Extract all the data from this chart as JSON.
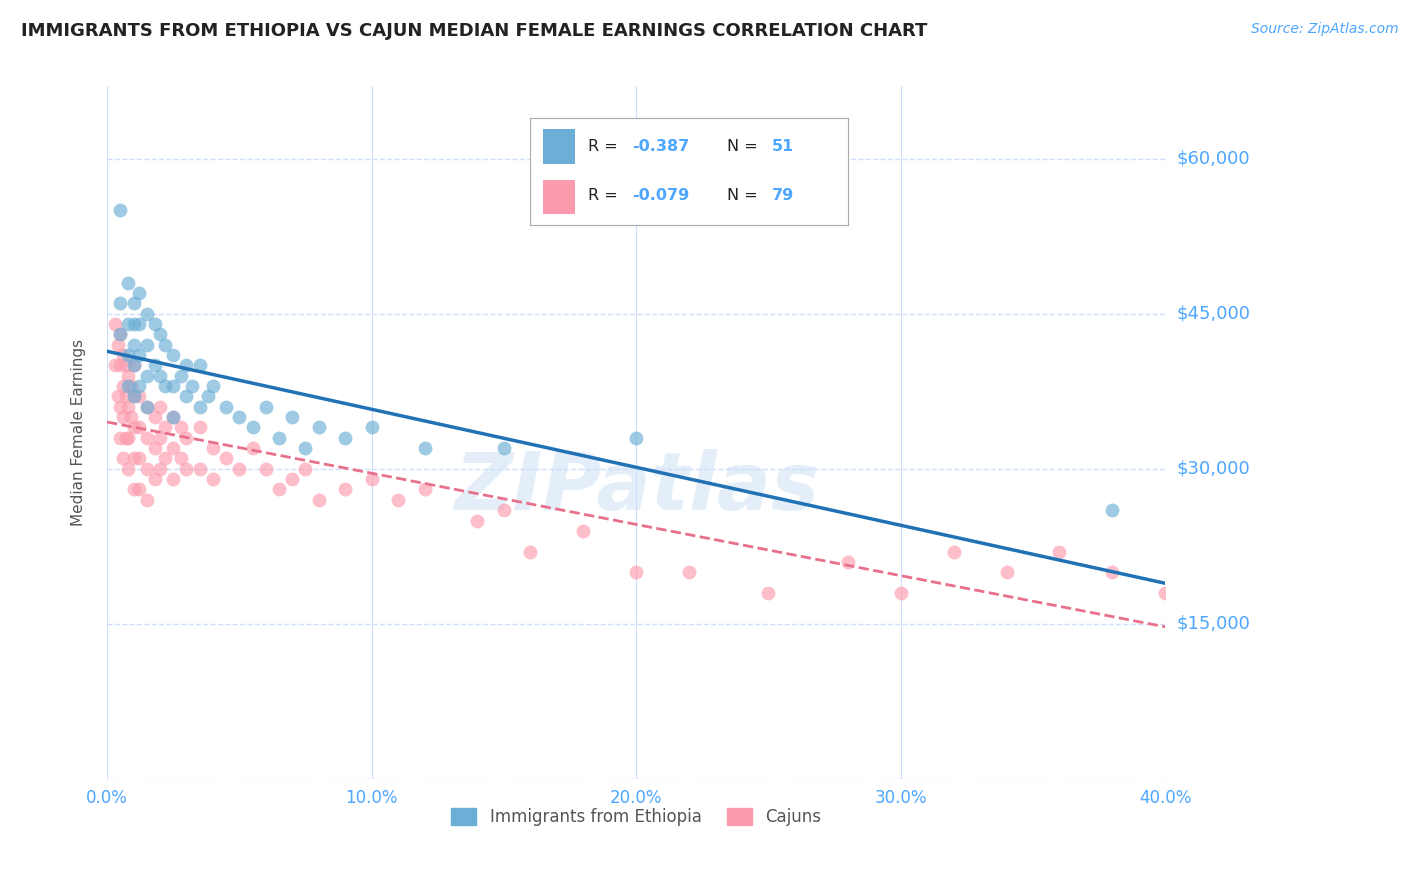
{
  "title": "IMMIGRANTS FROM ETHIOPIA VS CAJUN MEDIAN FEMALE EARNINGS CORRELATION CHART",
  "source": "Source: ZipAtlas.com",
  "ylabel": "Median Female Earnings",
  "xlim": [
    0.0,
    0.4
  ],
  "ylim": [
    0,
    67000
  ],
  "yticks": [
    0,
    15000,
    30000,
    45000,
    60000
  ],
  "ytick_labels": [
    "",
    "$15,000",
    "$30,000",
    "$45,000",
    "$60,000"
  ],
  "xticks": [
    0.0,
    0.1,
    0.2,
    0.3,
    0.4
  ],
  "xtick_labels": [
    "0.0%",
    "10.0%",
    "20.0%",
    "30.0%",
    "40.0%"
  ],
  "blue_R": -0.387,
  "blue_N": 51,
  "pink_R": -0.079,
  "pink_N": 79,
  "blue_color": "#6baed6",
  "pink_color": "#fc9bad",
  "blue_line_color": "#2171b5",
  "pink_line_color": "#e8708a",
  "legend_label_blue": "Immigrants from Ethiopia",
  "legend_label_pink": "Cajuns",
  "watermark": "ZIPatlas",
  "title_fontsize": 13,
  "axis_color": "#4da6ff",
  "background_color": "#ffffff",
  "grid_color": "#ccddff",
  "blue_x": [
    0.005,
    0.005,
    0.005,
    0.008,
    0.008,
    0.008,
    0.008,
    0.01,
    0.01,
    0.01,
    0.01,
    0.01,
    0.012,
    0.012,
    0.012,
    0.012,
    0.015,
    0.015,
    0.015,
    0.015,
    0.018,
    0.018,
    0.02,
    0.02,
    0.022,
    0.022,
    0.025,
    0.025,
    0.025,
    0.028,
    0.03,
    0.03,
    0.032,
    0.035,
    0.035,
    0.038,
    0.04,
    0.045,
    0.05,
    0.055,
    0.06,
    0.065,
    0.07,
    0.075,
    0.08,
    0.09,
    0.1,
    0.12,
    0.15,
    0.2,
    0.38
  ],
  "blue_y": [
    46000,
    43000,
    55000,
    48000,
    44000,
    41000,
    38000,
    46000,
    44000,
    42000,
    40000,
    37000,
    47000,
    44000,
    41000,
    38000,
    45000,
    42000,
    39000,
    36000,
    44000,
    40000,
    43000,
    39000,
    42000,
    38000,
    41000,
    38000,
    35000,
    39000,
    40000,
    37000,
    38000,
    40000,
    36000,
    37000,
    38000,
    36000,
    35000,
    34000,
    36000,
    33000,
    35000,
    32000,
    34000,
    33000,
    34000,
    32000,
    32000,
    33000,
    26000
  ],
  "pink_x": [
    0.003,
    0.003,
    0.004,
    0.004,
    0.005,
    0.005,
    0.005,
    0.005,
    0.006,
    0.006,
    0.006,
    0.006,
    0.007,
    0.007,
    0.007,
    0.008,
    0.008,
    0.008,
    0.008,
    0.009,
    0.009,
    0.01,
    0.01,
    0.01,
    0.01,
    0.01,
    0.012,
    0.012,
    0.012,
    0.012,
    0.015,
    0.015,
    0.015,
    0.015,
    0.018,
    0.018,
    0.018,
    0.02,
    0.02,
    0.02,
    0.022,
    0.022,
    0.025,
    0.025,
    0.025,
    0.028,
    0.028,
    0.03,
    0.03,
    0.035,
    0.035,
    0.04,
    0.04,
    0.045,
    0.05,
    0.055,
    0.06,
    0.065,
    0.07,
    0.075,
    0.08,
    0.09,
    0.1,
    0.11,
    0.12,
    0.14,
    0.15,
    0.16,
    0.18,
    0.2,
    0.22,
    0.25,
    0.28,
    0.3,
    0.32,
    0.34,
    0.36,
    0.38,
    0.4
  ],
  "pink_y": [
    44000,
    40000,
    42000,
    37000,
    43000,
    40000,
    36000,
    33000,
    41000,
    38000,
    35000,
    31000,
    40000,
    37000,
    33000,
    39000,
    36000,
    33000,
    30000,
    38000,
    35000,
    40000,
    37000,
    34000,
    31000,
    28000,
    37000,
    34000,
    31000,
    28000,
    36000,
    33000,
    30000,
    27000,
    35000,
    32000,
    29000,
    36000,
    33000,
    30000,
    34000,
    31000,
    35000,
    32000,
    29000,
    34000,
    31000,
    33000,
    30000,
    34000,
    30000,
    32000,
    29000,
    31000,
    30000,
    32000,
    30000,
    28000,
    29000,
    30000,
    27000,
    28000,
    29000,
    27000,
    28000,
    25000,
    26000,
    22000,
    24000,
    20000,
    20000,
    18000,
    21000,
    18000,
    22000,
    20000,
    22000,
    20000,
    18000
  ]
}
